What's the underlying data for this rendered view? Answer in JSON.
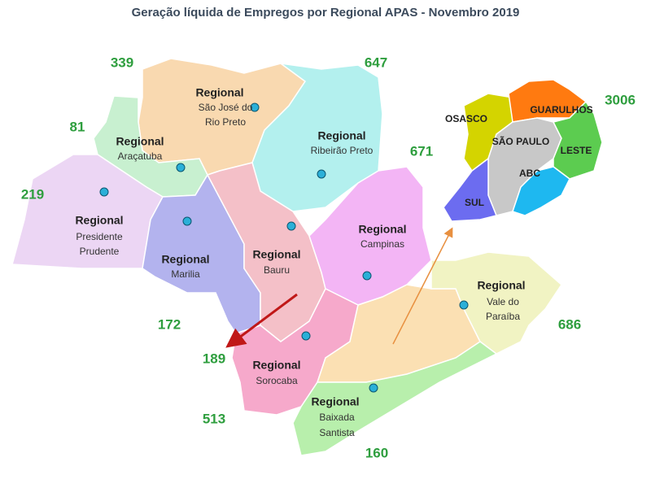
{
  "title": "Geração líquida de Empregos por Regional APAS - Novembro 2019",
  "regions": [
    {
      "heading": "Regional",
      "name": [
        "São José do",
        "Rio Preto"
      ],
      "value": 339
    },
    {
      "heading": "Regional",
      "name": [
        "Ribeirão Preto"
      ],
      "value": 647
    },
    {
      "heading": "Regional",
      "name": [
        "Araçatuba"
      ],
      "value": 81
    },
    {
      "heading": "Regional",
      "name": [
        "Presidente",
        "Prudente"
      ],
      "value": 219
    },
    {
      "heading": "Regional",
      "name": [
        "Marilia"
      ],
      "value": 172
    },
    {
      "heading": "Regional",
      "name": [
        "Bauru"
      ],
      "value": 189
    },
    {
      "heading": "Regional",
      "name": [
        "Campinas"
      ],
      "value": 671
    },
    {
      "heading": "Regional",
      "name": [
        "Sorocaba"
      ],
      "value": 513
    },
    {
      "heading": "Regional",
      "name": [
        "Vale do",
        "Paraíba"
      ],
      "value": 686
    },
    {
      "heading": "Regional",
      "name": [
        "Baixada",
        "Santista"
      ],
      "value": 160
    }
  ],
  "metro": {
    "value": 3006,
    "districts": [
      "OSASCO",
      "GUARULHOS",
      "SÃO PAULO",
      "LESTE",
      "ABC",
      "SUL"
    ]
  }
}
